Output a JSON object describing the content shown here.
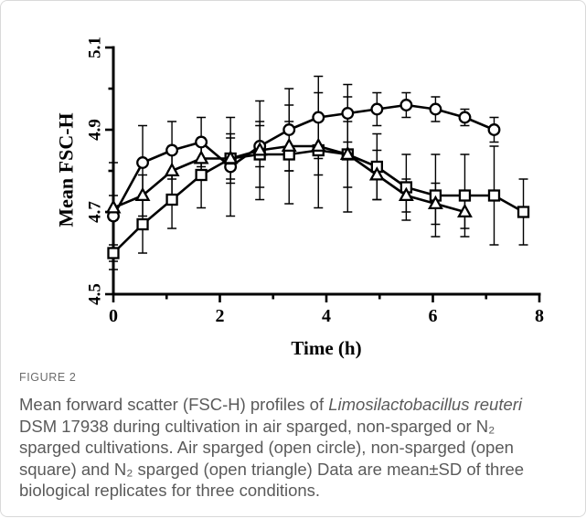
{
  "figure": {
    "label": "FIGURE 2"
  },
  "caption": {
    "line1_text": "Mean forward scatter (FSC-H) profiles of ",
    "line1_species": "Limosilactobacillus reuteri",
    "line2": "DSM 17938 during cultivation in air sparged, non-sparged or N₂",
    "line3": "sparged cultivations. Air sparged (open circle), non-sparged (open",
    "line4": "square) and N₂ sparged (open triangle) Data are mean±SD of three",
    "line5": "biological replicates for three conditions."
  },
  "colors": {
    "ink": "#000000",
    "marker_fill": "#ffffff"
  },
  "chart_data": {
    "type": "line",
    "xlabel": "Time (h)",
    "ylabel": "Mean FSC-H",
    "xlim": [
      0,
      8
    ],
    "ylim": [
      4.5,
      5.1
    ],
    "x_tick_labels": [
      "0",
      "2",
      "4",
      "6",
      "8"
    ],
    "y_tick_labels": [
      "4.5",
      "4.7",
      "4.9",
      "5.1"
    ],
    "grid": false,
    "series": [
      {
        "marker": "circle",
        "x": [
          0,
          0.55,
          1.1,
          1.65,
          2.2,
          2.75,
          3.3,
          3.85,
          4.4,
          4.95,
          5.5,
          6.05,
          6.6,
          7.15
        ],
        "y": [
          4.69,
          4.82,
          4.85,
          4.87,
          4.81,
          4.86,
          4.9,
          4.93,
          4.94,
          4.95,
          4.96,
          4.95,
          4.93,
          4.9
        ],
        "sd": [
          0.13,
          0.09,
          0.07,
          0.06,
          0.12,
          0.05,
          0.1,
          0.1,
          0.07,
          0.04,
          0.03,
          0.03,
          0.02,
          0.03
        ]
      },
      {
        "marker": "square",
        "x": [
          0,
          0.55,
          1.1,
          1.65,
          2.2,
          2.75,
          3.3,
          3.85,
          4.4,
          4.95,
          5.5,
          6.05,
          6.6,
          7.15,
          7.7
        ],
        "y": [
          4.6,
          4.67,
          4.73,
          4.79,
          4.83,
          4.84,
          4.84,
          4.85,
          4.84,
          4.81,
          4.76,
          4.74,
          4.74,
          4.74,
          4.7
        ],
        "sd": [
          0.02,
          0.07,
          0.07,
          0.08,
          0.06,
          0.08,
          0.12,
          0.14,
          0.08,
          0.08,
          0.08,
          0.1,
          0.1,
          0.12,
          0.08
        ]
      },
      {
        "marker": "triangle",
        "x": [
          0,
          0.55,
          1.1,
          1.65,
          2.2,
          2.75,
          3.3,
          3.85,
          4.4,
          4.95,
          5.5,
          6.05,
          6.6
        ],
        "y": [
          4.71,
          4.74,
          4.8,
          4.83,
          4.83,
          4.85,
          4.86,
          4.86,
          4.84,
          4.79,
          4.74,
          4.72,
          4.7
        ],
        "sd": [
          0.03,
          0.05,
          0.06,
          0.05,
          0.05,
          0.12,
          0.06,
          0.07,
          0.14,
          0.06,
          0.04,
          0.05,
          0.04
        ]
      }
    ]
  }
}
